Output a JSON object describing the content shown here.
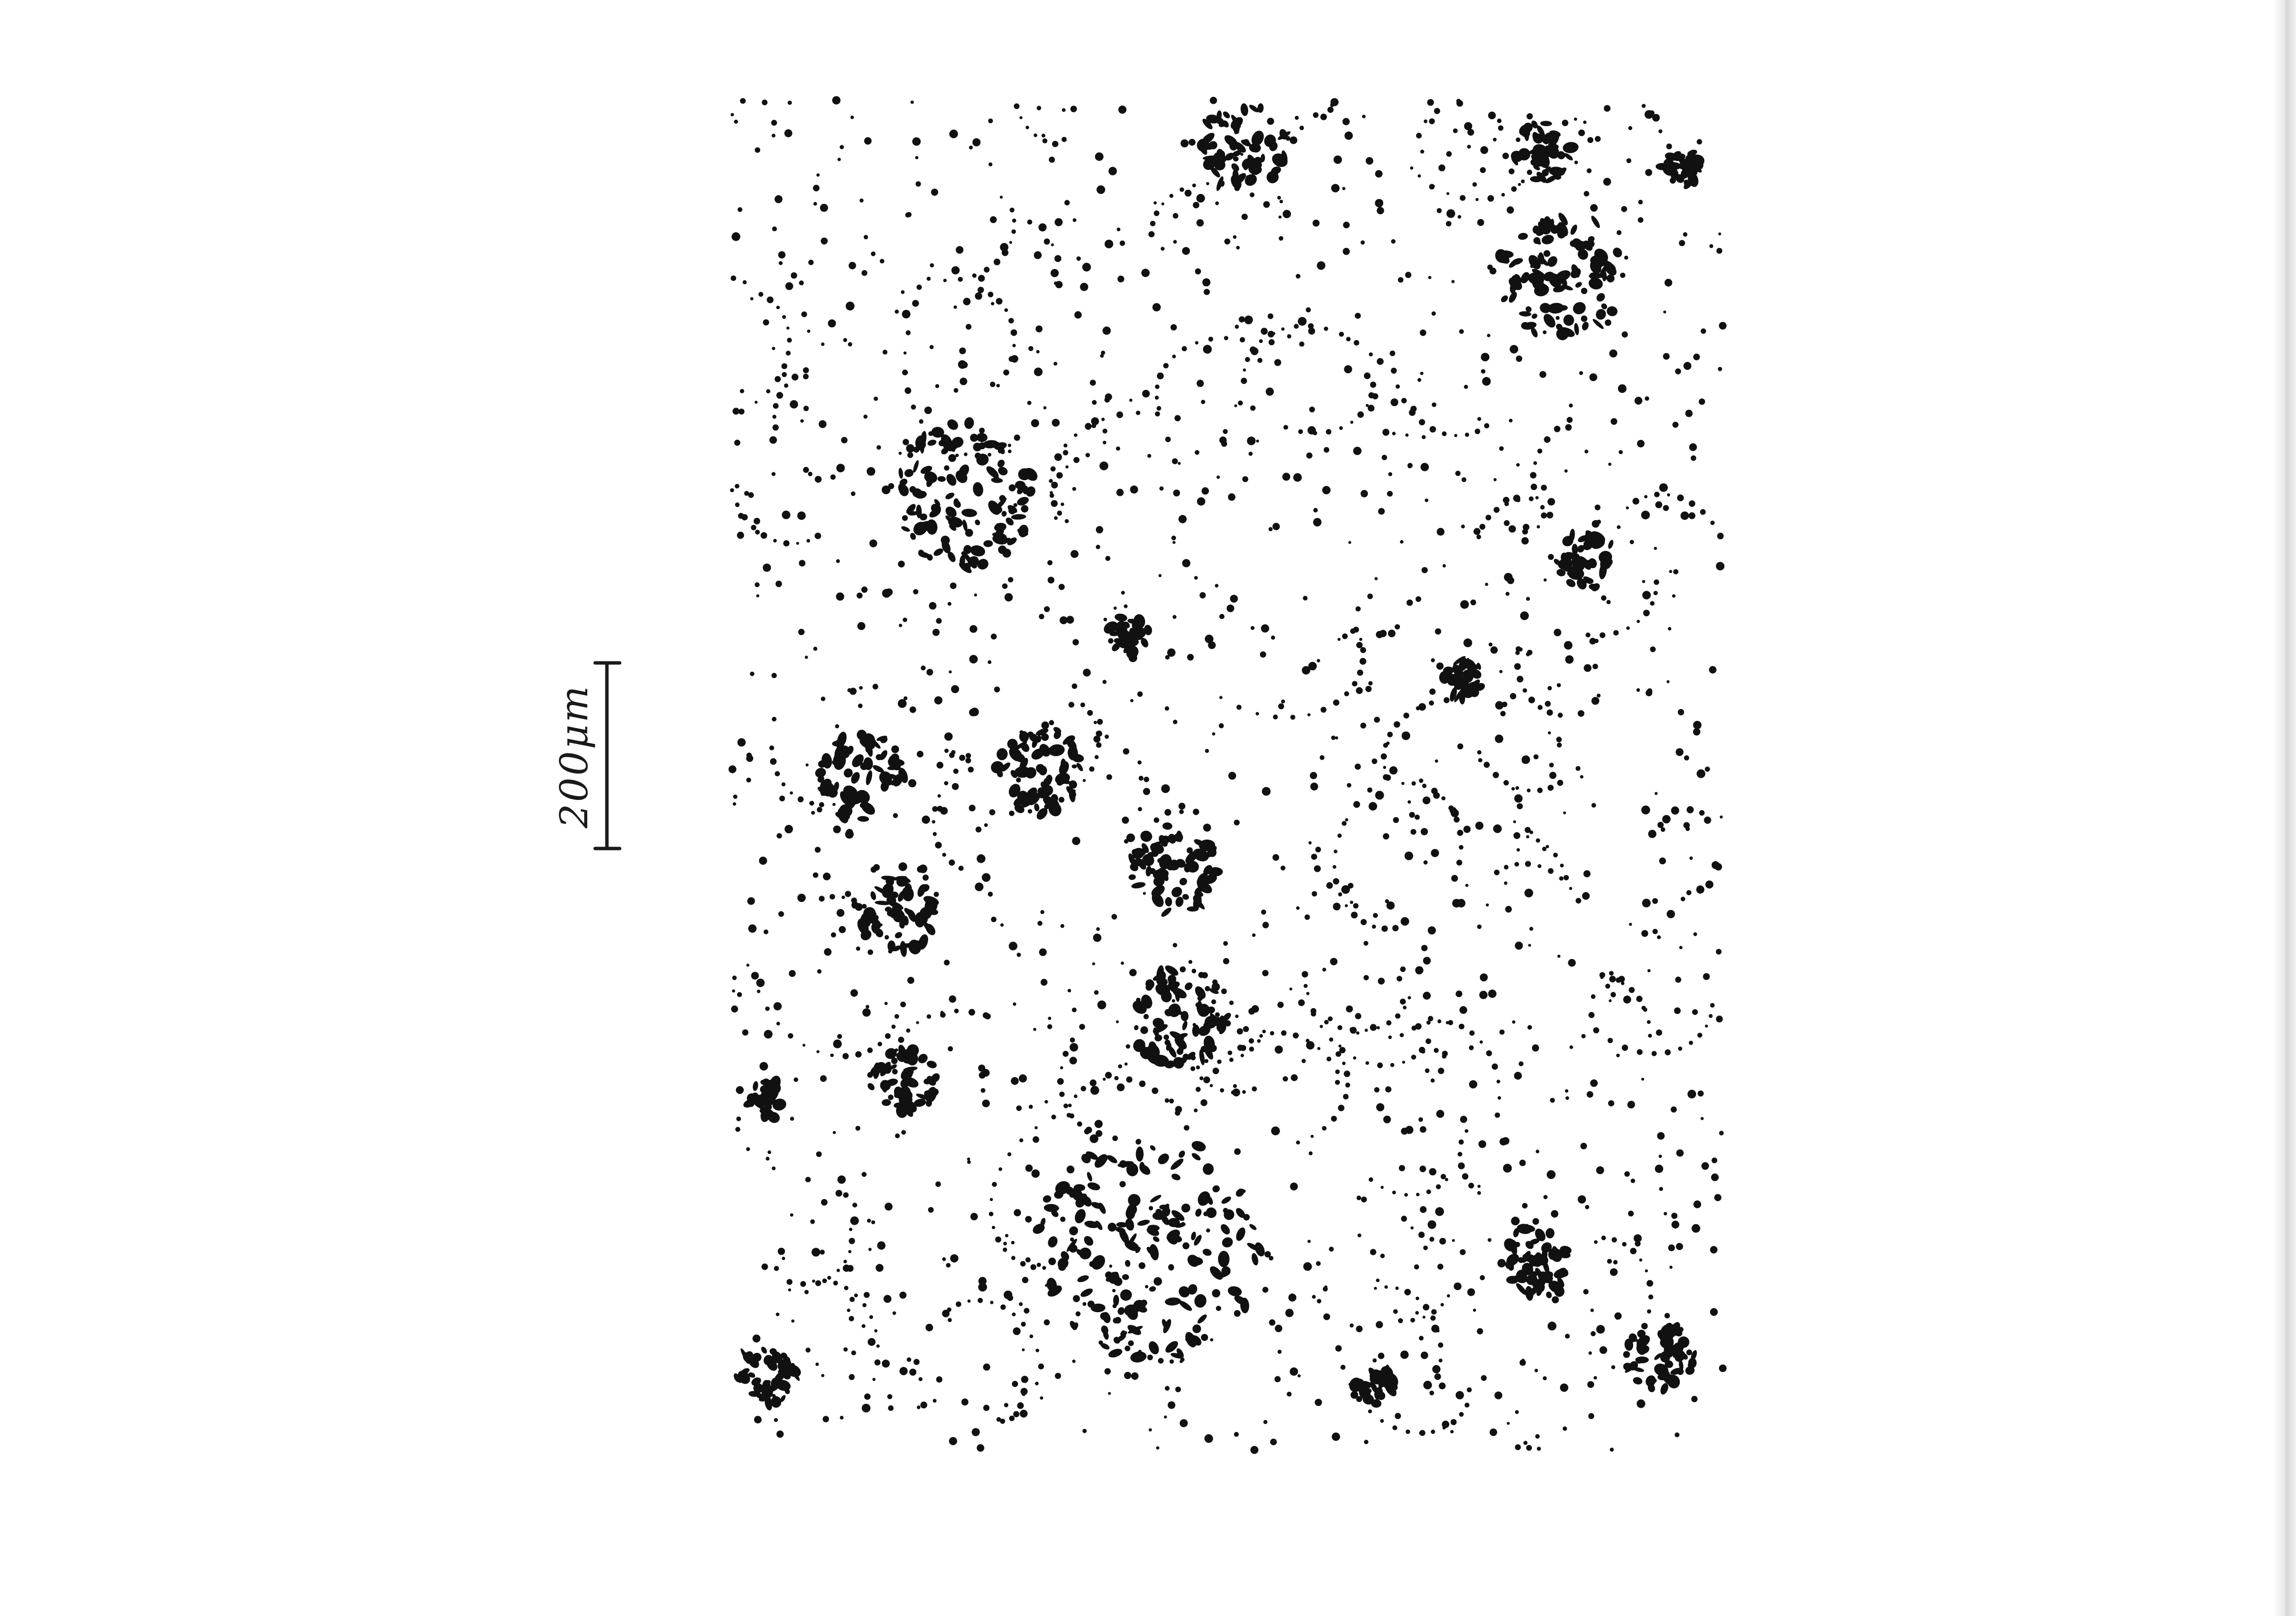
{
  "scale_bar": {
    "label": "200μm"
  },
  "colors": {
    "ink": "#111111",
    "paper": "#ffffff"
  }
}
